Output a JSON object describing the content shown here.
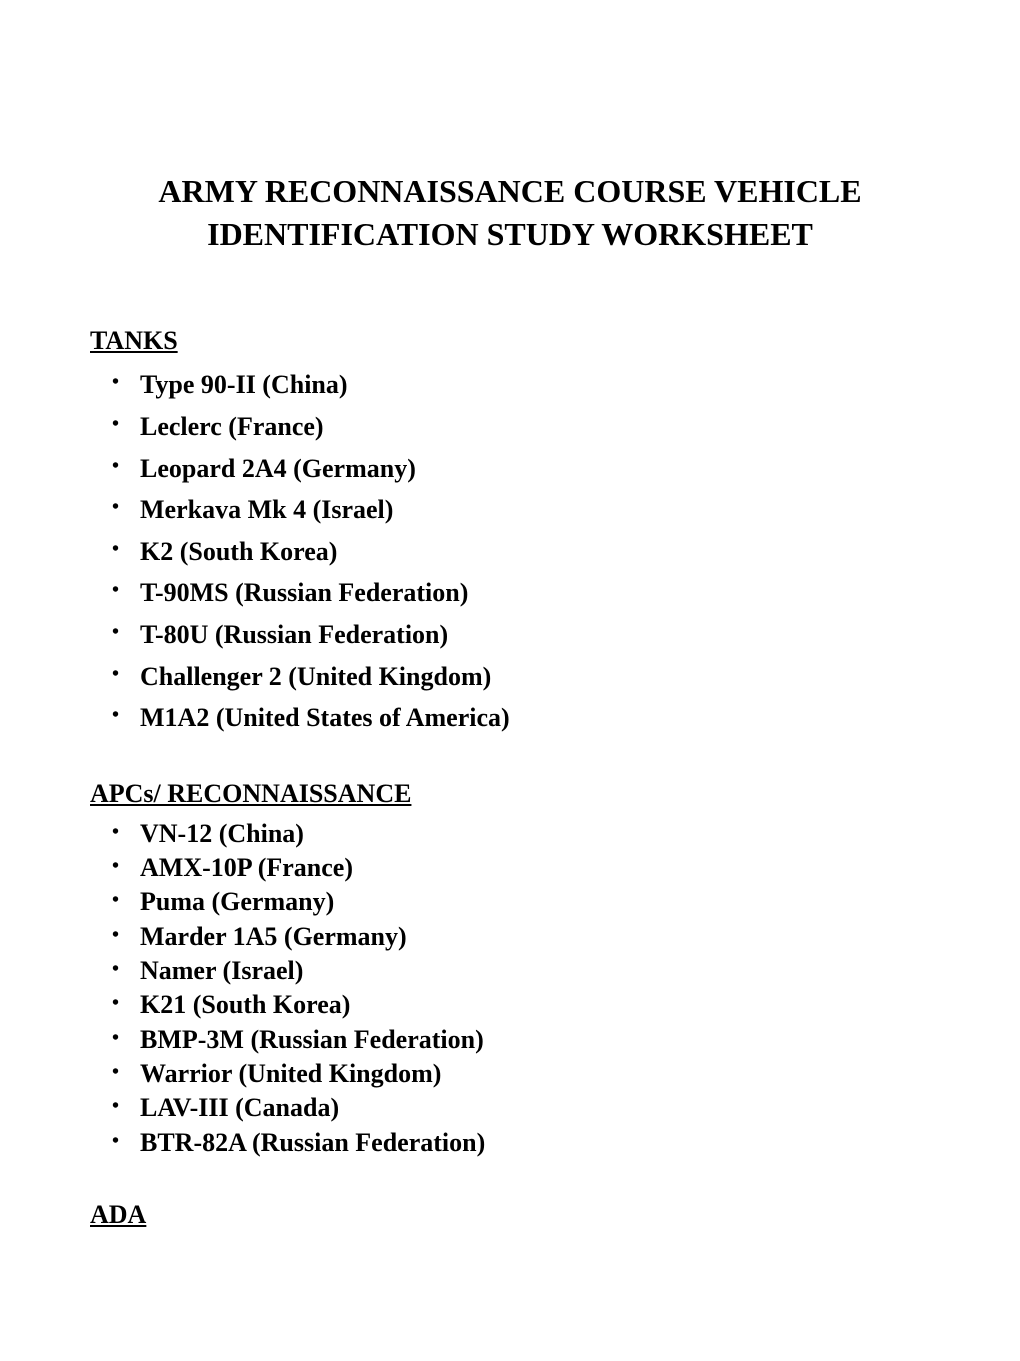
{
  "title_line1": "ARMY RECONNAISSANCE COURSE VEHICLE",
  "title_line2": "IDENTIFICATION STUDY WORKSHEET",
  "sections": {
    "tanks": {
      "heading": "TANKS ",
      "items": [
        "Type 90-II (China)",
        "Leclerc (France)",
        "Leopard 2A4 (Germany)",
        "Merkava Mk 4 (Israel)",
        "K2 (South Korea)",
        "T-90MS (Russian Federation)",
        "T-80U (Russian Federation)",
        "Challenger 2 (United Kingdom)",
        "M1A2 (United States of America)"
      ]
    },
    "apcs": {
      "heading": "APCs/ RECONNAISSANCE ",
      "items": [
        "VN-12 (China)",
        "AMX-10P (France)",
        "Puma (Germany)",
        "Marder 1A5 (Germany)",
        "Namer (Israel)",
        "K21 (South Korea)",
        "BMP-3M (Russian Federation)",
        "Warrior (United Kingdom)",
        "LAV-III (Canada)",
        "BTR-82A (Russian Federation)"
      ]
    },
    "ada": {
      "heading": "ADA "
    }
  },
  "styling": {
    "background_color": "#ffffff",
    "text_color": "#000000",
    "title_fontsize": 32,
    "heading_fontsize": 26,
    "item_fontsize": 26,
    "font_family": "Times New Roman"
  }
}
